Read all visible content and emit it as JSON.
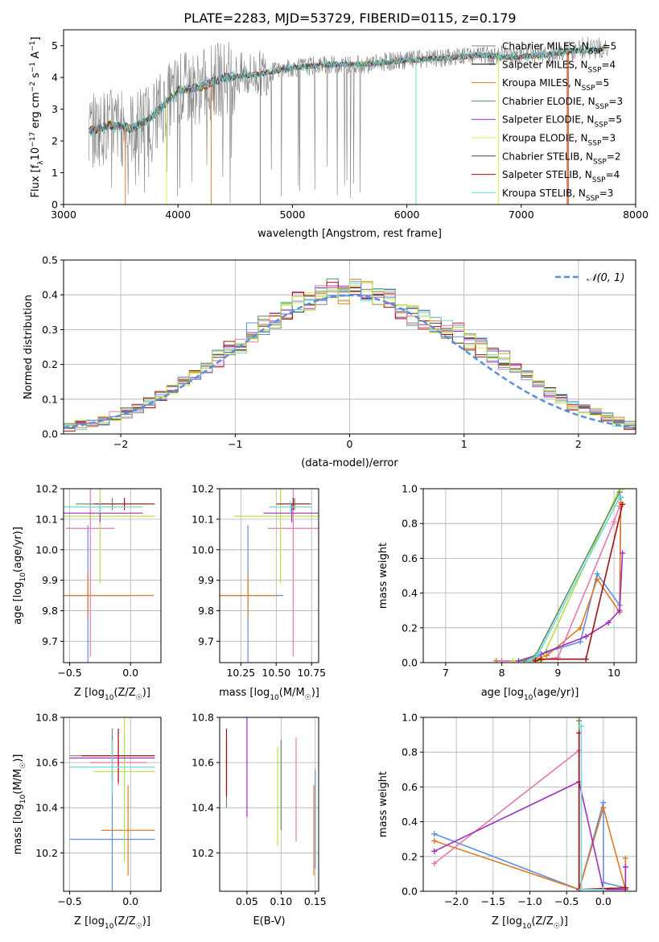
{
  "title": "PLATE=2283, MJD=53729, FIBERID=0115, z=0.179",
  "colors": {
    "Chabrier MILES": "#808080",
    "Salpeter MILES": "#000000",
    "Kroupa MILES": "#e07b28",
    "Chabrier ELODIE": "#5f8f5f",
    "Salpeter ELODIE": "#a030c0",
    "Kroupa ELODIE": "#d4f050",
    "Chabrier STELIB": "#444444",
    "Salpeter STELIB": "#a01010",
    "Kroupa STELIB": "#70d8d8",
    "pink": "#e878b0",
    "blue": "#6090e0",
    "yellowgreen": "#b8e040",
    "gauss": "#5b8fd9",
    "grid": "#b0b0b0"
  },
  "chart_data": [
    {
      "id": "spectrum",
      "type": "line",
      "xlabel": "wavelength [Angstrom, rest frame]",
      "ylabel": "Flux [f_λ10^-17 erg cm^-2 s^-1 A^-1]",
      "xlim": [
        3000,
        8000
      ],
      "ylim": [
        0,
        5.5
      ],
      "xticks": [
        "3000",
        "4000",
        "5000",
        "6000",
        "7000",
        "8000"
      ],
      "yticks": [
        "0",
        "1",
        "2",
        "3",
        "4",
        "5"
      ],
      "grid": false,
      "legend_position": "top-right",
      "legend": [
        {
          "name": "Chabrier MILES, N_SSP=5",
          "color": "#808080"
        },
        {
          "name": "Salpeter MILES, N_SSP=4",
          "color": "#000000"
        },
        {
          "name": "Kroupa MILES, N_SSP=5",
          "color": "#e07b28"
        },
        {
          "name": "Chabrier ELODIE, N_SSP=3",
          "color": "#5f8f5f"
        },
        {
          "name": "Salpeter ELODIE, N_SSP=5",
          "color": "#a030c0"
        },
        {
          "name": "Kroupa ELODIE, N_SSP=3",
          "color": "#d4f050"
        },
        {
          "name": "Chabrier STELIB, N_SSP=2",
          "color": "#444444"
        },
        {
          "name": "Salpeter STELIB, N_SSP=4",
          "color": "#a01010"
        },
        {
          "name": "Kroupa STELIB, N_SSP=3",
          "color": "#70d8d8"
        }
      ],
      "continuum": [
        [
          3220,
          2.3
        ],
        [
          3400,
          2.5
        ],
        [
          3600,
          2.4
        ],
        [
          3750,
          2.7
        ],
        [
          3900,
          3.2
        ],
        [
          4000,
          3.6
        ],
        [
          4200,
          3.7
        ],
        [
          4400,
          4.0
        ],
        [
          4700,
          4.1
        ],
        [
          5000,
          4.3
        ],
        [
          5300,
          4.4
        ],
        [
          5600,
          4.4
        ],
        [
          6000,
          4.55
        ],
        [
          6300,
          4.6
        ],
        [
          6600,
          4.7
        ],
        [
          6900,
          4.65
        ],
        [
          7200,
          4.7
        ],
        [
          7500,
          4.85
        ],
        [
          7750,
          4.9
        ]
      ]
    },
    {
      "id": "residuals",
      "type": "line",
      "xlabel": "(data-model)/error",
      "ylabel": "Normed distribution",
      "xlim": [
        -2.5,
        2.5
      ],
      "ylim": [
        0,
        0.5
      ],
      "xticks": [
        "−2",
        "−1",
        "0",
        "1",
        "2"
      ],
      "yticks": [
        "0.0",
        "0.1",
        "0.2",
        "0.3",
        "0.4",
        "0.5"
      ],
      "grid": true,
      "legend_position": "top-right",
      "legend": [
        {
          "name": "𝒩(0, 1)",
          "color": "#5b8fd9"
        }
      ],
      "bins": [
        -2.5,
        -2.4,
        -2.3,
        -2.2,
        -2.1,
        -2.0,
        -1.9,
        -1.8,
        -1.7,
        -1.6,
        -1.5,
        -1.4,
        -1.3,
        -1.2,
        -1.1,
        -1.0,
        -0.9,
        -0.8,
        -0.7,
        -0.6,
        -0.5,
        -0.4,
        -0.3,
        -0.2,
        -0.1,
        0.0,
        0.1,
        0.2,
        0.3,
        0.4,
        0.5,
        0.6,
        0.7,
        0.8,
        0.9,
        1.0,
        1.1,
        1.2,
        1.3,
        1.4,
        1.5,
        1.6,
        1.7,
        1.8,
        1.9,
        2.0,
        2.1,
        2.2,
        2.3,
        2.4
      ],
      "base": [
        0.02,
        0.025,
        0.03,
        0.04,
        0.05,
        0.06,
        0.07,
        0.09,
        0.11,
        0.13,
        0.15,
        0.17,
        0.19,
        0.22,
        0.24,
        0.26,
        0.29,
        0.31,
        0.33,
        0.36,
        0.38,
        0.38,
        0.4,
        0.42,
        0.4,
        0.42,
        0.41,
        0.4,
        0.39,
        0.36,
        0.34,
        0.33,
        0.32,
        0.3,
        0.29,
        0.27,
        0.25,
        0.23,
        0.21,
        0.19,
        0.17,
        0.14,
        0.12,
        0.1,
        0.08,
        0.07,
        0.06,
        0.05,
        0.035,
        0.025
      ]
    },
    {
      "id": "age_vs_Z",
      "type": "scatter",
      "xlabel": "Z [log10(Z/Z☉)]",
      "ylabel": "age  [log10(age/yr)]",
      "xlim": [
        -0.55,
        0.25
      ],
      "ylim": [
        9.63,
        10.2
      ],
      "xticks": [
        "−0.5",
        "0.0"
      ],
      "yticks": [
        "9.7",
        "9.8",
        "9.9",
        "10.0",
        "10.1",
        "10.2"
      ],
      "grid": true,
      "points": [
        {
          "c": "blue",
          "x": -0.35,
          "xe": 0.35,
          "y": 9.85,
          "ye": 0.23
        },
        {
          "c": "Kroupa MILES",
          "x": -0.35,
          "xe": 0.54,
          "y": 9.85,
          "ye": 0.07
        },
        {
          "c": "pink",
          "x": -0.33,
          "xe": 0.2,
          "y": 10.07,
          "ye": 0.42
        },
        {
          "c": "yellowgreen",
          "x": -0.25,
          "xe": 0.45,
          "y": 10.11,
          "ye": 0.22
        },
        {
          "c": "Salpeter ELODIE",
          "x": -0.25,
          "xe": 0.35,
          "y": 10.12,
          "ye": 0.03
        },
        {
          "c": "Chabrier ELODIE",
          "x": -0.15,
          "xe": 0.3,
          "y": 10.15,
          "ye": 0.02
        },
        {
          "c": "Salpeter STELIB",
          "x": -0.05,
          "xe": 0.25,
          "y": 10.15,
          "ye": 0.02
        },
        {
          "c": "Kroupa STELIB",
          "x": -0.25,
          "xe": 0.35,
          "y": 10.14,
          "ye": 0.02
        }
      ]
    },
    {
      "id": "age_vs_mass",
      "type": "scatter",
      "xlabel": "mass [log10(M/M☉)]",
      "ylabel": "",
      "xlim": [
        10.1,
        10.8
      ],
      "ylim": [
        9.63,
        10.2
      ],
      "xticks": [
        "10.25",
        "10.50",
        "10.75"
      ],
      "yticks": [
        "9.7",
        "9.8",
        "9.9",
        "10.0",
        "10.1",
        "10.2"
      ],
      "grid": true,
      "points": [
        {
          "c": "blue",
          "x": 10.3,
          "xe": 0.25,
          "y": 9.85,
          "ye": 0.23
        },
        {
          "c": "Kroupa MILES",
          "x": 10.3,
          "xe": 0.2,
          "y": 9.85,
          "ye": 0.07
        },
        {
          "c": "pink",
          "x": 10.62,
          "xe": 0.18,
          "y": 10.07,
          "ye": 0.42
        },
        {
          "c": "yellowgreen",
          "x": 10.53,
          "xe": 0.33,
          "y": 10.11,
          "ye": 0.22
        },
        {
          "c": "Salpeter ELODIE",
          "x": 10.61,
          "xe": 0.2,
          "y": 10.12,
          "ye": 0.03
        },
        {
          "c": "Chabrier ELODIE",
          "x": 10.63,
          "xe": 0.12,
          "y": 10.15,
          "ye": 0.02
        },
        {
          "c": "Salpeter STELIB",
          "x": 10.62,
          "xe": 0.12,
          "y": 10.15,
          "ye": 0.02
        },
        {
          "c": "Kroupa STELIB",
          "x": 10.6,
          "xe": 0.15,
          "y": 10.14,
          "ye": 0.02
        }
      ]
    },
    {
      "id": "weight_vs_age",
      "type": "line",
      "xlabel": "age  [log10(age/yr)]",
      "ylabel": "mass weight",
      "xlim": [
        6.6,
        10.4
      ],
      "ylim": [
        0,
        1.0
      ],
      "xticks": [
        "7",
        "8",
        "9",
        "10"
      ],
      "yticks": [
        "0.0",
        "0.2",
        "0.4",
        "0.6",
        "0.8",
        "1.0"
      ],
      "grid": true,
      "series": [
        {
          "c": "blue",
          "x": [
            7.9,
            8.5,
            8.8,
            9.4,
            9.7,
            10.1,
            10.12
          ],
          "y": [
            0.01,
            0.01,
            0.06,
            0.12,
            0.51,
            0.33,
            0.95
          ]
        },
        {
          "c": "Kroupa MILES",
          "x": [
            7.9,
            8.5,
            8.8,
            9.4,
            9.7,
            10.1,
            10.12
          ],
          "y": [
            0.01,
            0.01,
            0.04,
            0.2,
            0.48,
            0.29,
            0.92
          ]
        },
        {
          "c": "pink",
          "x": [
            8.0,
            8.6,
            9.0,
            10.0,
            10.1
          ],
          "y": [
            0.01,
            0.01,
            0.03,
            0.81,
            0.9
          ]
        },
        {
          "c": "yellowgreen",
          "x": [
            8.2,
            8.7,
            10.1,
            10.15
          ],
          "y": [
            0.01,
            0.01,
            1.0,
            1.0
          ]
        },
        {
          "c": "Salpeter ELODIE",
          "x": [
            8.3,
            8.7,
            9.5,
            9.9,
            10.1,
            10.15
          ],
          "y": [
            0.01,
            0.05,
            0.15,
            0.23,
            0.3,
            0.63
          ]
        },
        {
          "c": "Chabrier ELODIE",
          "x": [
            8.4,
            8.6,
            10.1
          ],
          "y": [
            0.01,
            0.04,
            0.98
          ]
        },
        {
          "c": "Salpeter STELIB",
          "x": [
            8.5,
            8.6,
            8.7,
            9.5,
            10.15
          ],
          "y": [
            0.01,
            0.01,
            0.02,
            0.02,
            0.91
          ]
        },
        {
          "c": "Kroupa STELIB",
          "x": [
            8.5,
            8.65,
            10.1
          ],
          "y": [
            0.01,
            0.05,
            0.95
          ]
        }
      ]
    },
    {
      "id": "mass_vs_Z",
      "type": "scatter",
      "xlabel": "Z [log10(Z/Z☉)]",
      "ylabel": "mass [log10(M/M☉)]",
      "xlim": [
        -0.55,
        0.25
      ],
      "ylim": [
        10.03,
        10.8
      ],
      "xticks": [
        "−0.5",
        "0.0"
      ],
      "yticks": [
        "10.2",
        "10.4",
        "10.6",
        "10.8"
      ],
      "grid": true,
      "points": [
        {
          "c": "blue",
          "x": -0.15,
          "xe": 0.35,
          "y": 10.26,
          "ye": 0.3
        },
        {
          "c": "Kroupa MILES",
          "x": -0.02,
          "xe": 0.22,
          "y": 10.3,
          "ye": 0.2
        },
        {
          "c": "pink",
          "x": -0.1,
          "xe": 0.23,
          "y": 10.6,
          "ye": 0.1
        },
        {
          "c": "yellowgreen",
          "x": -0.05,
          "xe": 0.25,
          "y": 10.56,
          "ye": 0.4
        },
        {
          "c": "Salpeter ELODIE",
          "x": -0.15,
          "xe": 0.35,
          "y": 10.62,
          "ye": 0.1
        },
        {
          "c": "Chabrier ELODIE",
          "x": -0.15,
          "xe": 0.35,
          "y": 10.63,
          "ye": 0.12
        },
        {
          "c": "Salpeter STELIB",
          "x": -0.1,
          "xe": 0.3,
          "y": 10.63,
          "ye": 0.12
        },
        {
          "c": "Kroupa STELIB",
          "x": -0.15,
          "xe": 0.35,
          "y": 10.58,
          "ye": 0.12
        }
      ]
    },
    {
      "id": "mass_vs_ebv",
      "type": "scatter",
      "xlabel": "E(B-V)",
      "ylabel": "",
      "xlim": [
        0.01,
        0.155
      ],
      "ylim": [
        10.03,
        10.8
      ],
      "xticks": [
        "0.05",
        "0.10",
        "0.15"
      ],
      "yticks": [
        "10.2",
        "10.4",
        "10.6",
        "10.8"
      ],
      "grid": true,
      "points": [
        {
          "c": "Chabrier ELODIE",
          "x": 0.02,
          "xe": 0,
          "y": 10.55,
          "ye": 0.15
        },
        {
          "c": "Salpeter STELIB",
          "x": 0.02,
          "xe": 0,
          "y": 10.6,
          "ye": 0.15
        },
        {
          "c": "Salpeter ELODIE",
          "x": 0.05,
          "xe": 0,
          "y": 10.58,
          "ye": 0.22
        },
        {
          "c": "yellowgreen",
          "x": 0.095,
          "xe": 0,
          "y": 10.45,
          "ye": 0.22
        },
        {
          "c": "Chabrier ELODIE",
          "x": 0.1,
          "xe": 0,
          "y": 10.5,
          "ye": 0.2
        },
        {
          "c": "pink",
          "x": 0.122,
          "xe": 0,
          "y": 10.48,
          "ye": 0.23
        },
        {
          "c": "Kroupa MILES",
          "x": 0.148,
          "xe": 0,
          "y": 10.3,
          "ye": 0.2
        },
        {
          "c": "blue",
          "x": 0.15,
          "xe": 0,
          "y": 10.35,
          "ye": 0.22
        }
      ]
    },
    {
      "id": "weight_vs_Z",
      "type": "line",
      "xlabel": "Z [log10(Z/Z☉)]",
      "ylabel": "mass weight",
      "xlim": [
        -2.45,
        0.45
      ],
      "ylim": [
        0,
        1.0
      ],
      "xticks": [
        "−2.0",
        "−1.5",
        "−1.0",
        "−0.5",
        "0.0"
      ],
      "yticks": [
        "0.0",
        "0.2",
        "0.4",
        "0.6",
        "0.8",
        "1.0"
      ],
      "grid": true,
      "series": [
        {
          "c": "blue",
          "x": [
            -2.3,
            -0.33,
            0.0,
            0.0,
            0.3
          ],
          "y": [
            0.33,
            0.01,
            0.51,
            0.05,
            0.02
          ]
        },
        {
          "c": "Kroupa MILES",
          "x": [
            -2.3,
            -0.33,
            0.0,
            0.3,
            0.3
          ],
          "y": [
            0.29,
            0.01,
            0.48,
            0.01,
            0.19
          ]
        },
        {
          "c": "pink",
          "x": [
            -2.3,
            -0.33,
            -0.33,
            0.3
          ],
          "y": [
            0.16,
            0.81,
            0.01,
            0.01
          ]
        },
        {
          "c": "Salpeter ELODIE",
          "x": [
            -2.3,
            -0.33,
            0.0,
            0.3,
            0.3
          ],
          "y": [
            0.23,
            0.63,
            0.01,
            0.01,
            0.14
          ]
        },
        {
          "c": "yellowgreen",
          "x": [
            -0.33,
            -0.33,
            0.0
          ],
          "y": [
            1.0,
            0.01,
            0.01
          ]
        },
        {
          "c": "Chabrier ELODIE",
          "x": [
            -0.33,
            -0.33
          ],
          "y": [
            0.98,
            0.01
          ]
        },
        {
          "c": "Salpeter STELIB",
          "x": [
            -0.33,
            -0.33,
            0.3
          ],
          "y": [
            0.91,
            0.01,
            0.02
          ]
        },
        {
          "c": "Kroupa STELIB",
          "x": [
            -0.3,
            -0.3,
            0.0
          ],
          "y": [
            0.95,
            0.01,
            0.01
          ]
        }
      ]
    }
  ]
}
